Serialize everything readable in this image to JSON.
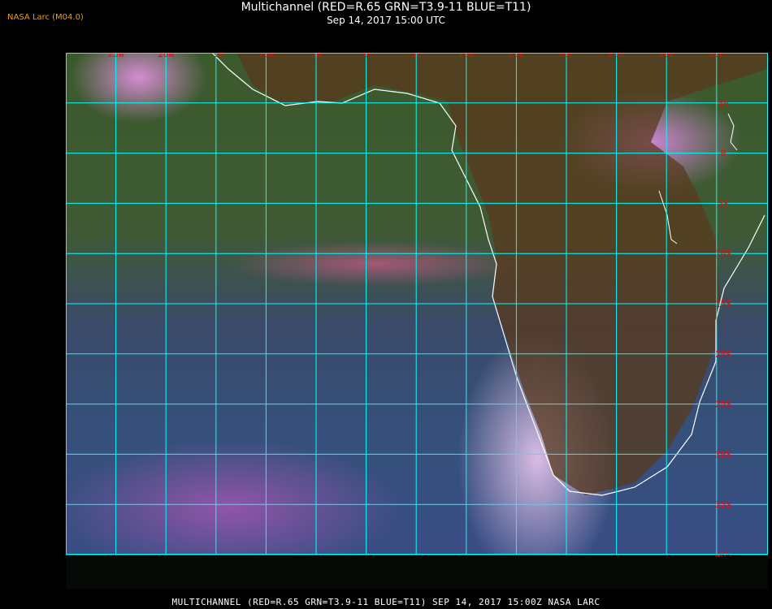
{
  "header": {
    "logo": "NASA Larc (M04.0)",
    "title": "Multichannel (RED=R.65 GRN=T3.9-11 BLUE=T11)",
    "subtitle": "Sep 14, 2017 15:00 UTC"
  },
  "map": {
    "grid_color": "#00ffff",
    "label_color": "#ff0000",
    "coastline_color": "#ffffff",
    "longitude_labels": [
      "25W",
      "20W",
      "15W",
      "10W",
      "5W",
      "0",
      "5E",
      "10E",
      "15E",
      "20E",
      "25E",
      "30E",
      "35E"
    ],
    "latitude_labels": [
      "5N",
      "0",
      "5S",
      "10S",
      "15S",
      "20S",
      "25S",
      "30S",
      "35S",
      "40S"
    ]
  },
  "footer": {
    "caption": "MULTICHANNEL (RED=R.65 GRN=T3.9-11 BLUE=T11) SEP 14, 2017 15:00Z   NASA LARC"
  }
}
